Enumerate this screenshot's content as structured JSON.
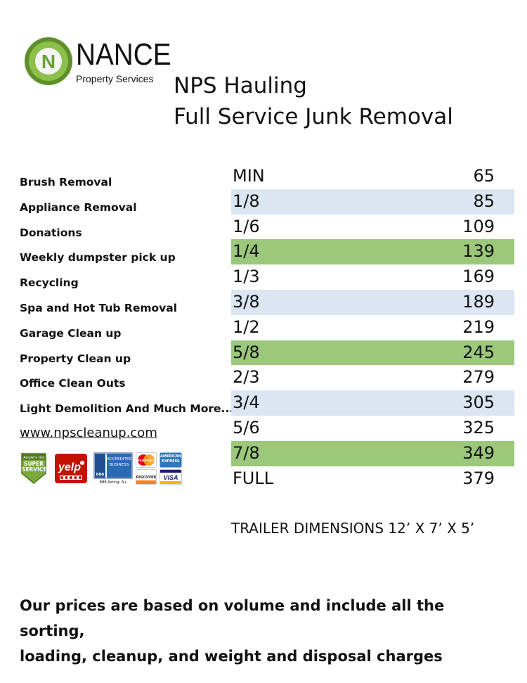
{
  "logo": {
    "mark_letter": "N",
    "name": "NANCE",
    "subtitle": "Property Services"
  },
  "heading": {
    "line1": "NPS Hauling",
    "line2": "Full Service Junk Removal"
  },
  "services": [
    "Brush Removal",
    "Appliance Removal",
    "Donations",
    "Weekly dumpster pick up",
    "Recycling",
    "Spa and Hot Tub Removal",
    "Garage Clean up",
    "Property Clean up",
    "Office Clean Outs",
    "Light Demolition And Much More..."
  ],
  "website": "www.npscleanup.com",
  "badges": {
    "angies_top": "Angie's list",
    "angies_main": "SUPER SERVICE",
    "yelp": "yelp",
    "bbb_logo": "BBB",
    "bbb_main": "ACCREDITED BUSINESS",
    "bbb_rating": "BBB Rating: A+",
    "mastercard": "MasterCard",
    "amex": "AMERICAN EXPRESS",
    "discover": "DISCOVER",
    "visa": "VISA"
  },
  "price_table": [
    {
      "size": "MIN",
      "price": "65",
      "highlight": "none"
    },
    {
      "size": "1/8",
      "price": "85",
      "highlight": "blue"
    },
    {
      "size": "1/6",
      "price": "109",
      "highlight": "none"
    },
    {
      "size": "1/4",
      "price": "139",
      "highlight": "green"
    },
    {
      "size": "1/3",
      "price": "169",
      "highlight": "none"
    },
    {
      "size": "3/8",
      "price": "189",
      "highlight": "blue"
    },
    {
      "size": "1/2",
      "price": "219",
      "highlight": "none"
    },
    {
      "size": "5/8",
      "price": "245",
      "highlight": "green"
    },
    {
      "size": "2/3",
      "price": "279",
      "highlight": "none"
    },
    {
      "size": "3/4",
      "price": "305",
      "highlight": "blue"
    },
    {
      "size": "5/6",
      "price": "325",
      "highlight": "none"
    },
    {
      "size": "7/8",
      "price": "349",
      "highlight": "green"
    },
    {
      "size": "FULL",
      "price": "379",
      "highlight": "none"
    }
  ],
  "trailer_dimensions": "TRAILER DIMENSIONS 12’ X 7’ X 5’",
  "footer": {
    "line1": "Our prices are based on volume and include all the sorting,",
    "line2": "loading, cleanup, and weight and disposal charges"
  },
  "colors": {
    "row_blue": "#dce6f2",
    "row_green": "#9bc87a",
    "logo_green": "#7db13d"
  }
}
